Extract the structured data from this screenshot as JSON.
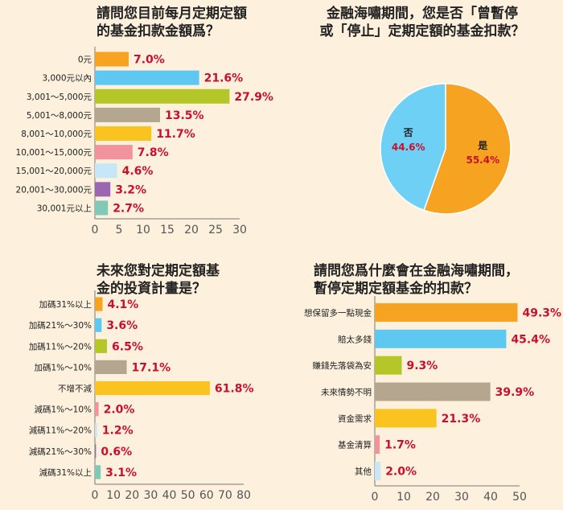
{
  "colors": {
    "background": "#fdf1de",
    "value_text": "#c8102e",
    "orange": "#f6a321",
    "blue": "#5ec8f0",
    "lime": "#b4c628",
    "taupe": "#b5a68f",
    "yellow": "#fac31f",
    "pink": "#f0939b",
    "lightblue": "#c5e7f7",
    "purple": "#9a67b0",
    "teal": "#82c8b6",
    "sky": "#6fd0f5"
  },
  "chart_data": [
    {
      "id": "monthly_amount",
      "type": "bar",
      "orientation": "horizontal",
      "title_lines": [
        "請問您目前每月定期定額",
        "的基金扣款金額爲？"
      ],
      "categories": [
        "0元",
        "3,000元以內",
        "3,001～5,000元",
        "5,001～8,000元",
        "8,001～10,000元",
        "10,001～15,000元",
        "15,001～20,000元",
        "20,001～30,000元",
        "30,001元以上"
      ],
      "values": [
        7.0,
        21.6,
        27.9,
        13.5,
        11.7,
        7.8,
        4.6,
        3.2,
        2.7
      ],
      "labels": [
        "7.0%",
        "21.6%",
        "27.9%",
        "13.5%",
        "11.7%",
        "7.8%",
        "4.6%",
        "3.2%",
        "2.7%"
      ],
      "colors": [
        "#f6a321",
        "#5ec8f0",
        "#b4c628",
        "#b5a68f",
        "#fac31f",
        "#f0939b",
        "#c5e7f7",
        "#9a67b0",
        "#82c8b6"
      ],
      "xlim": [
        0,
        30
      ],
      "xticks": [
        "0",
        "5",
        "10",
        "15",
        "20",
        "25",
        "30"
      ]
    },
    {
      "id": "pause_during_crisis",
      "type": "pie",
      "title_lines": [
        "金融海嘯期間，您是否「曾暫停",
        "或「停止」定期定額的基金扣款？"
      ],
      "slices": [
        {
          "name": "是",
          "value": 55.4,
          "label": "55.4%",
          "color": "#f6a321"
        },
        {
          "name": "否",
          "value": 44.6,
          "label": "44.6%",
          "color": "#6fd0f5"
        }
      ]
    },
    {
      "id": "future_plan",
      "type": "bar",
      "orientation": "horizontal",
      "title_lines": [
        "未來您對定期定額基",
        "金的投資計畫是？"
      ],
      "categories": [
        "加碼31%以上",
        "加碼21%～30%",
        "加碼11%～20%",
        "加碼1%～10%",
        "不增不減",
        "減碼1%～10%",
        "減碼11%～20%",
        "減碼21%～30%",
        "減碼31%以上"
      ],
      "values": [
        4.1,
        3.6,
        6.5,
        17.1,
        61.8,
        2.0,
        1.2,
        0.6,
        3.1
      ],
      "labels": [
        "4.1%",
        "3.6%",
        "6.5%",
        "17.1%",
        "61.8%",
        "2.0%",
        "1.2%",
        "0.6%",
        "3.1%"
      ],
      "colors": [
        "#f6a321",
        "#5ec8f0",
        "#b4c628",
        "#b5a68f",
        "#fac31f",
        "#f0939b",
        "#c5e7f7",
        "#9a67b0",
        "#82c8b6"
      ],
      "xlim": [
        0,
        80
      ],
      "xticks": [
        "0",
        "10",
        "20",
        "30",
        "40",
        "50",
        "60",
        "70",
        "80"
      ]
    },
    {
      "id": "pause_reasons",
      "type": "bar",
      "orientation": "horizontal",
      "title_lines": [
        "請問您爲什麼會在金融海嘯期間，",
        "暫停定期定額基金的扣款？"
      ],
      "categories": [
        "想保留多一點現金",
        "賠太多錢",
        "賺錢先落袋為安",
        "未來情勢不明",
        "資金需求",
        "基金清算",
        "其他"
      ],
      "values": [
        49.3,
        45.4,
        9.3,
        39.9,
        21.3,
        1.7,
        2.0
      ],
      "labels": [
        "49.3%",
        "45.4%",
        "9.3%",
        "39.9%",
        "21.3%",
        "1.7%",
        "2.0%"
      ],
      "colors": [
        "#f6a321",
        "#5ec8f0",
        "#b4c628",
        "#b5a68f",
        "#fac31f",
        "#f0939b",
        "#c5e7f7"
      ],
      "xlim": [
        0,
        50
      ],
      "xticks": [
        "0",
        "10",
        "20",
        "30",
        "40",
        "50"
      ]
    }
  ]
}
